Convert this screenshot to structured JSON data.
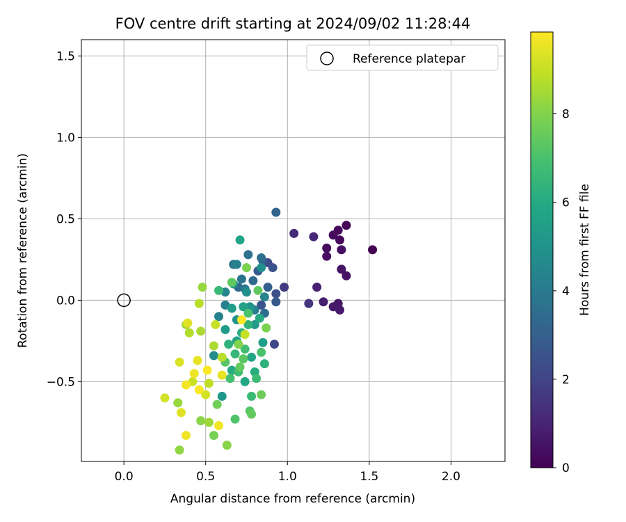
{
  "chart_data": {
    "type": "scatter",
    "title": "FOV centre drift starting at 2024/09/02 11:28:44",
    "xlabel": "Angular distance from reference (arcmin)",
    "ylabel": "Rotation from reference (arcmin)",
    "xlim": [
      -0.26,
      2.33
    ],
    "ylim": [
      -0.99,
      1.6
    ],
    "xticks": [
      0.0,
      0.5,
      1.0,
      1.5,
      2.0
    ],
    "xtick_labels": [
      "0.0",
      "0.5",
      "1.0",
      "1.5",
      "2.0"
    ],
    "yticks": [
      -0.5,
      0.0,
      0.5,
      1.0,
      1.5
    ],
    "ytick_labels": [
      "−0.5",
      "0.0",
      "0.5",
      "1.0",
      "1.5"
    ],
    "grid": true,
    "legend": {
      "location": "upper-right",
      "entries": [
        "Reference platepar"
      ]
    },
    "reference_point": {
      "x": 0.0,
      "y": 0.0,
      "marker": "open-circle"
    },
    "colorbar": {
      "label": "Hours from first FF file",
      "colormap": "viridis",
      "range": [
        0,
        9.85
      ],
      "ticks": [
        0,
        2,
        4,
        6,
        8
      ],
      "tick_labels": [
        "0",
        "2",
        "4",
        "6",
        "8"
      ]
    },
    "series": [
      {
        "points": [
          {
            "x": 1.52,
            "y": 0.31,
            "h": 0.0
          },
          {
            "x": 1.36,
            "y": 0.46,
            "h": 0.1
          },
          {
            "x": 1.31,
            "y": 0.43,
            "h": 0.2
          },
          {
            "x": 1.32,
            "y": 0.37,
            "h": 0.2
          },
          {
            "x": 1.28,
            "y": 0.4,
            "h": 0.3
          },
          {
            "x": 1.24,
            "y": 0.32,
            "h": 0.3
          },
          {
            "x": 1.33,
            "y": 0.31,
            "h": 0.4
          },
          {
            "x": 1.24,
            "y": 0.27,
            "h": 0.4
          },
          {
            "x": 1.33,
            "y": 0.19,
            "h": 0.5
          },
          {
            "x": 1.36,
            "y": 0.15,
            "h": 0.5
          },
          {
            "x": 1.31,
            "y": -0.02,
            "h": 0.6
          },
          {
            "x": 1.28,
            "y": -0.04,
            "h": 0.7
          },
          {
            "x": 1.32,
            "y": -0.06,
            "h": 0.7
          },
          {
            "x": 1.22,
            "y": -0.01,
            "h": 0.8
          },
          {
            "x": 1.18,
            "y": 0.08,
            "h": 0.9
          },
          {
            "x": 1.16,
            "y": 0.39,
            "h": 1.1
          },
          {
            "x": 1.04,
            "y": 0.41,
            "h": 1.2
          },
          {
            "x": 1.13,
            "y": -0.02,
            "h": 1.5
          },
          {
            "x": 0.98,
            "y": 0.08,
            "h": 1.7
          },
          {
            "x": 0.92,
            "y": -0.27,
            "h": 2.1
          },
          {
            "x": 0.88,
            "y": 0.23,
            "h": 2.2
          },
          {
            "x": 0.93,
            "y": 0.04,
            "h": 2.4
          },
          {
            "x": 0.91,
            "y": 0.2,
            "h": 2.5
          },
          {
            "x": 0.84,
            "y": -0.03,
            "h": 2.6
          },
          {
            "x": 0.93,
            "y": -0.01,
            "h": 2.7
          },
          {
            "x": 0.85,
            "y": 0.24,
            "h": 2.8
          },
          {
            "x": 0.82,
            "y": 0.18,
            "h": 2.9
          },
          {
            "x": 0.88,
            "y": 0.08,
            "h": 3.0
          },
          {
            "x": 0.93,
            "y": 0.54,
            "h": 3.2
          },
          {
            "x": 0.7,
            "y": 0.08,
            "h": 3.3
          },
          {
            "x": 0.79,
            "y": 0.12,
            "h": 3.4
          },
          {
            "x": 0.86,
            "y": -0.08,
            "h": 3.5
          },
          {
            "x": 0.84,
            "y": 0.26,
            "h": 3.6
          },
          {
            "x": 0.76,
            "y": 0.28,
            "h": 3.7
          },
          {
            "x": 0.72,
            "y": 0.13,
            "h": 3.8
          },
          {
            "x": 0.67,
            "y": 0.22,
            "h": 3.9
          },
          {
            "x": 0.74,
            "y": 0.07,
            "h": 4.0
          },
          {
            "x": 0.8,
            "y": -0.06,
            "h": 4.1
          },
          {
            "x": 0.62,
            "y": -0.03,
            "h": 4.2
          },
          {
            "x": 0.58,
            "y": -0.1,
            "h": 4.3
          },
          {
            "x": 0.69,
            "y": 0.22,
            "h": 4.3
          },
          {
            "x": 0.86,
            "y": 0.02,
            "h": 4.4
          },
          {
            "x": 0.62,
            "y": 0.05,
            "h": 4.5
          },
          {
            "x": 0.78,
            "y": -0.05,
            "h": 4.6
          },
          {
            "x": 0.55,
            "y": -0.34,
            "h": 4.7
          },
          {
            "x": 0.75,
            "y": 0.05,
            "h": 4.8
          },
          {
            "x": 0.84,
            "y": 0.2,
            "h": 4.9
          },
          {
            "x": 0.69,
            "y": -0.12,
            "h": 5.0
          },
          {
            "x": 0.67,
            "y": 0.1,
            "h": 5.0
          },
          {
            "x": 0.77,
            "y": -0.04,
            "h": 5.1
          },
          {
            "x": 0.6,
            "y": -0.59,
            "h": 5.2
          },
          {
            "x": 0.8,
            "y": -0.15,
            "h": 5.3
          },
          {
            "x": 0.66,
            "y": -0.05,
            "h": 5.4
          },
          {
            "x": 0.62,
            "y": -0.18,
            "h": 5.4
          },
          {
            "x": 0.85,
            "y": -0.26,
            "h": 5.5
          },
          {
            "x": 0.73,
            "y": -0.04,
            "h": 5.6
          },
          {
            "x": 0.69,
            "y": -0.25,
            "h": 5.7
          },
          {
            "x": 0.78,
            "y": -0.35,
            "h": 5.8
          },
          {
            "x": 0.71,
            "y": 0.37,
            "h": 5.8
          },
          {
            "x": 0.74,
            "y": -0.5,
            "h": 5.9
          },
          {
            "x": 0.66,
            "y": -0.43,
            "h": 6.0
          },
          {
            "x": 0.83,
            "y": -0.11,
            "h": 6.0
          },
          {
            "x": 0.8,
            "y": -0.44,
            "h": 6.1
          },
          {
            "x": 0.72,
            "y": -0.2,
            "h": 6.2
          },
          {
            "x": 0.64,
            "y": -0.27,
            "h": 6.3
          },
          {
            "x": 0.86,
            "y": -0.39,
            "h": 6.3
          },
          {
            "x": 0.76,
            "y": -0.15,
            "h": 6.4
          },
          {
            "x": 0.68,
            "y": -0.33,
            "h": 6.5
          },
          {
            "x": 0.58,
            "y": 0.06,
            "h": 6.6
          },
          {
            "x": 0.78,
            "y": -0.59,
            "h": 6.6
          },
          {
            "x": 0.81,
            "y": -0.48,
            "h": 6.7
          },
          {
            "x": 0.7,
            "y": -0.44,
            "h": 6.8
          },
          {
            "x": 0.74,
            "y": -0.3,
            "h": 6.8
          },
          {
            "x": 0.65,
            "y": -0.48,
            "h": 6.9
          },
          {
            "x": 0.76,
            "y": -0.08,
            "h": 7.0
          },
          {
            "x": 0.84,
            "y": -0.32,
            "h": 7.0
          },
          {
            "x": 0.68,
            "y": -0.73,
            "h": 7.1
          },
          {
            "x": 0.77,
            "y": -0.68,
            "h": 7.2
          },
          {
            "x": 0.62,
            "y": -0.38,
            "h": 7.2
          },
          {
            "x": 0.73,
            "y": -0.36,
            "h": 7.3
          },
          {
            "x": 0.82,
            "y": 0.06,
            "h": 7.4
          },
          {
            "x": 0.66,
            "y": 0.11,
            "h": 7.4
          },
          {
            "x": 0.78,
            "y": -0.7,
            "h": 7.5
          },
          {
            "x": 0.71,
            "y": -0.41,
            "h": 7.5
          },
          {
            "x": 0.84,
            "y": -0.58,
            "h": 7.6
          },
          {
            "x": 0.57,
            "y": -0.64,
            "h": 7.7
          },
          {
            "x": 0.55,
            "y": -0.83,
            "h": 7.8
          },
          {
            "x": 0.87,
            "y": -0.17,
            "h": 7.9
          },
          {
            "x": 0.75,
            "y": 0.2,
            "h": 7.9
          },
          {
            "x": 0.7,
            "y": -0.27,
            "h": 8.0
          },
          {
            "x": 0.63,
            "y": -0.89,
            "h": 8.1
          },
          {
            "x": 0.47,
            "y": -0.74,
            "h": 8.1
          },
          {
            "x": 0.34,
            "y": -0.92,
            "h": 8.2
          },
          {
            "x": 0.33,
            "y": -0.63,
            "h": 8.3
          },
          {
            "x": 0.48,
            "y": 0.08,
            "h": 8.3
          },
          {
            "x": 0.52,
            "y": -0.75,
            "h": 8.4
          },
          {
            "x": 0.38,
            "y": -0.15,
            "h": 8.5
          },
          {
            "x": 0.55,
            "y": -0.28,
            "h": 8.6
          },
          {
            "x": 0.47,
            "y": -0.19,
            "h": 8.6
          },
          {
            "x": 0.4,
            "y": -0.2,
            "h": 8.7
          },
          {
            "x": 0.46,
            "y": -0.02,
            "h": 8.8
          },
          {
            "x": 0.6,
            "y": -0.35,
            "h": 8.8
          },
          {
            "x": 0.52,
            "y": -0.51,
            "h": 8.9
          },
          {
            "x": 0.74,
            "y": -0.21,
            "h": 9.0
          },
          {
            "x": 0.56,
            "y": -0.15,
            "h": 9.0
          },
          {
            "x": 0.42,
            "y": -0.5,
            "h": 9.1
          },
          {
            "x": 0.25,
            "y": -0.6,
            "h": 9.2
          },
          {
            "x": 0.5,
            "y": -0.58,
            "h": 9.2
          },
          {
            "x": 0.34,
            "y": -0.38,
            "h": 9.3
          },
          {
            "x": 0.39,
            "y": -0.14,
            "h": 9.4
          },
          {
            "x": 0.35,
            "y": -0.69,
            "h": 9.4
          },
          {
            "x": 0.6,
            "y": -0.46,
            "h": 9.5
          },
          {
            "x": 0.45,
            "y": -0.37,
            "h": 9.5
          },
          {
            "x": 0.43,
            "y": -0.45,
            "h": 9.6
          },
          {
            "x": 0.38,
            "y": -0.83,
            "h": 9.6
          },
          {
            "x": 0.58,
            "y": -0.77,
            "h": 9.7
          },
          {
            "x": 0.38,
            "y": -0.52,
            "h": 9.7
          },
          {
            "x": 0.51,
            "y": -0.43,
            "h": 9.8
          },
          {
            "x": 0.46,
            "y": -0.55,
            "h": 9.8
          },
          {
            "x": 0.72,
            "y": -0.12,
            "h": 9.85
          }
        ]
      }
    ]
  }
}
